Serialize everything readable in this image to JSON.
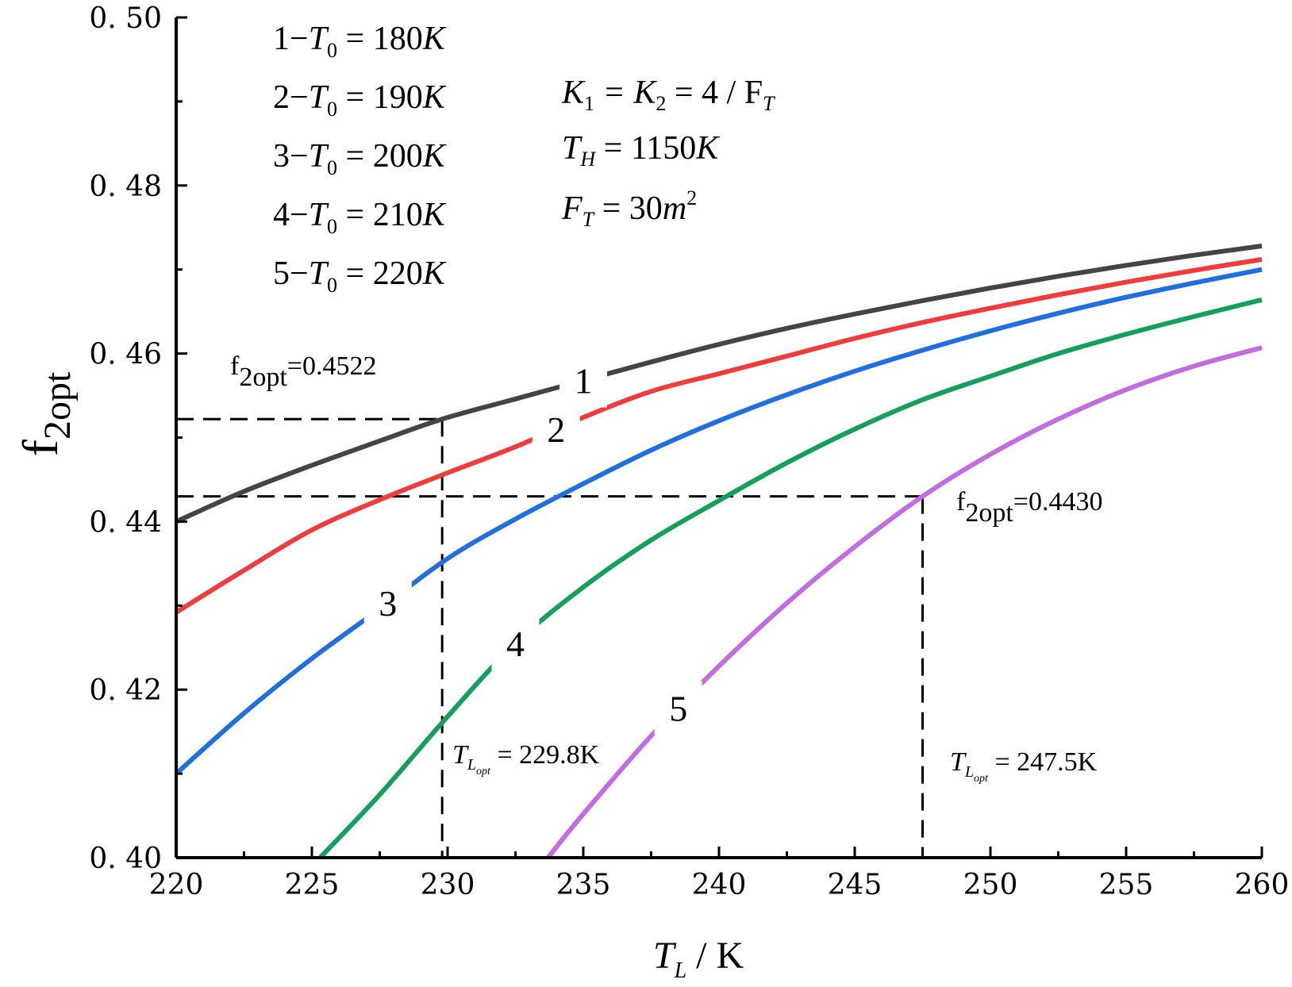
{
  "chart_data": {
    "type": "line",
    "xlabel_main": "T",
    "xlabel_sub": "L",
    "xlabel_unit": " / K",
    "ylabel_main": "f",
    "ylabel_sub": "2opt",
    "xlim": [
      220,
      260
    ],
    "ylim": [
      0.4,
      0.5
    ],
    "xticks": [
      220,
      225,
      230,
      235,
      240,
      245,
      250,
      255,
      260
    ],
    "xtick_labels": [
      "220",
      "225",
      "230",
      "235",
      "240",
      "245",
      "250",
      "255",
      "260"
    ],
    "yticks": [
      0.4,
      0.42,
      0.44,
      0.46,
      0.48,
      0.5
    ],
    "ytick_labels": [
      "0. 40",
      "0. 42",
      "0. 44",
      "0. 46",
      "0. 48",
      "0. 50"
    ],
    "legend": [
      {
        "num": "1",
        "dash": "−",
        "var": "T",
        "sub": "0",
        "eq": " = 180",
        "unit": "K"
      },
      {
        "num": "2",
        "dash": "−",
        "var": "T",
        "sub": "0",
        "eq": " = 190",
        "unit": "K"
      },
      {
        "num": "3",
        "dash": "−",
        "var": "T",
        "sub": "0",
        "eq": " = 200",
        "unit": "K"
      },
      {
        "num": "4",
        "dash": "−",
        "var": "T",
        "sub": "0",
        "eq": " = 210",
        "unit": "K"
      },
      {
        "num": "5",
        "dash": "−",
        "var": "T",
        "sub": "0",
        "eq": " = 220",
        "unit": "K"
      }
    ],
    "params": {
      "k_line": {
        "a": "K",
        "a_sub": "1",
        "b": " = K",
        "b_sub": "2",
        "c": " = 4 / F",
        "c_sub": "T"
      },
      "th_line": {
        "a": "T",
        "a_sub": "H",
        "b": " = 1150",
        "c": "K"
      },
      "ft_line": {
        "a": "F",
        "a_sub": "T",
        "b": " = 30",
        "c": "m",
        "sup": "2"
      }
    },
    "annotations": {
      "f1": {
        "main": "f",
        "sub": "2opt",
        "value": "=0.4522"
      },
      "f2": {
        "main": "f",
        "sub": "2opt",
        "value": "=0.4430"
      },
      "t1": {
        "main": "T",
        "sub": "L",
        "subsub": "opt",
        "value": " = 229.8K"
      },
      "t2": {
        "main": "T",
        "sub": "L",
        "subsub": "opt",
        "value": " = 247.5K"
      }
    },
    "reference_lines": [
      {
        "x": 229.8,
        "y": 0.4522
      },
      {
        "x": 247.5,
        "y": 0.443
      }
    ],
    "series": [
      {
        "label": "1",
        "color": "#444444",
        "label_at": 235.0,
        "x": [
          220,
          222.5,
          225,
          227.5,
          229.8,
          232.5,
          235,
          237.5,
          240,
          242.5,
          245,
          247.5,
          250,
          252.5,
          255,
          257.5,
          260
        ],
        "y": [
          0.44,
          0.4436,
          0.4467,
          0.4496,
          0.4522,
          0.4546,
          0.4568,
          0.459,
          0.4611,
          0.463,
          0.4647,
          0.4663,
          0.4678,
          0.4692,
          0.4705,
          0.4717,
          0.4728
        ]
      },
      {
        "label": "2",
        "color": "#f23b3b",
        "label_at": 234.0,
        "x": [
          220,
          222.5,
          225,
          227.5,
          230,
          232.5,
          235,
          237.5,
          240,
          242.5,
          245,
          247.5,
          250,
          252.5,
          255,
          257.5,
          260
        ],
        "y": [
          0.4292,
          0.4342,
          0.439,
          0.4426,
          0.4458,
          0.4489,
          0.4524,
          0.4555,
          0.4576,
          0.4597,
          0.4618,
          0.4637,
          0.4654,
          0.467,
          0.4685,
          0.4699,
          0.4712
        ]
      },
      {
        "label": "3",
        "color": "#1f6fe0",
        "label_at": 227.8,
        "x": [
          220,
          222.5,
          225,
          227.5,
          230,
          232.5,
          235,
          237.5,
          240,
          242.5,
          245,
          247.5,
          250,
          252.5,
          255,
          257.5,
          260
        ],
        "y": [
          0.41,
          0.4172,
          0.4237,
          0.4296,
          0.4356,
          0.4403,
          0.4445,
          0.4485,
          0.452,
          0.4551,
          0.4579,
          0.4604,
          0.4627,
          0.4648,
          0.4667,
          0.4684,
          0.47
        ]
      },
      {
        "label": "4",
        "color": "#12a05a",
        "label_at": 232.5,
        "x": [
          225.3,
          227.5,
          230,
          232.5,
          235,
          237.5,
          240,
          242.5,
          245,
          247.5,
          250,
          252.5,
          255,
          257.5,
          260
        ],
        "y": [
          0.4,
          0.4075,
          0.4168,
          0.4255,
          0.4322,
          0.4378,
          0.4425,
          0.447,
          0.451,
          0.4545,
          0.4573,
          0.46,
          0.4623,
          0.4644,
          0.4664
        ]
      },
      {
        "label": "5",
        "color": "#c36be0",
        "label_at": 238.5,
        "x": [
          233.7,
          235,
          237.5,
          240,
          242.5,
          245,
          247.5,
          250,
          252.5,
          255,
          257.5,
          260
        ],
        "y": [
          0.4,
          0.4052,
          0.4145,
          0.4228,
          0.4303,
          0.437,
          0.443,
          0.448,
          0.4522,
          0.4557,
          0.4585,
          0.4607
        ]
      }
    ]
  }
}
